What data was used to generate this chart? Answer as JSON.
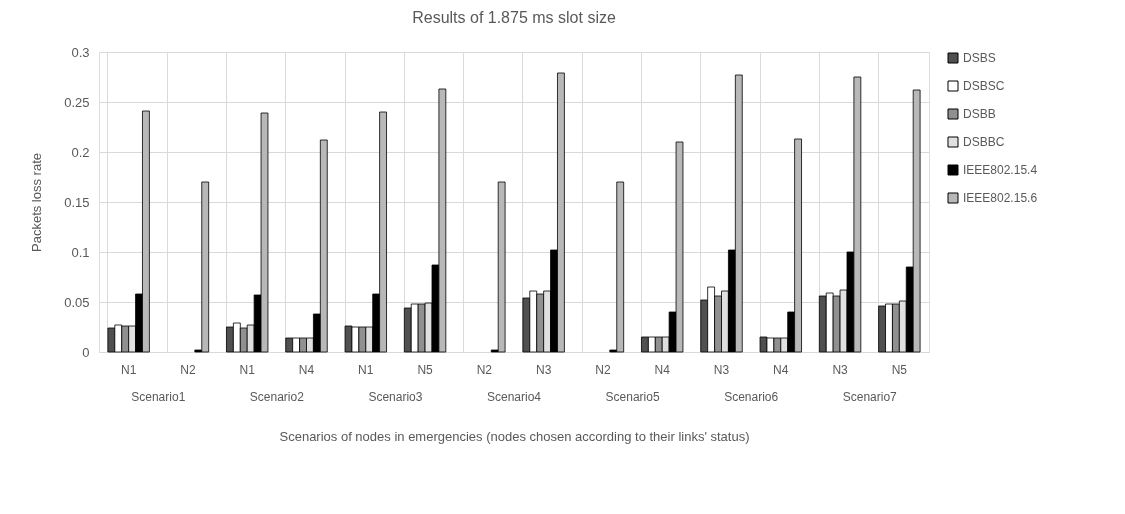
{
  "chart_data": {
    "type": "bar",
    "title": "Results of 1.875 ms slot size",
    "xlabel": "Scenarios of nodes in emergencies (nodes chosen according to their links' status)",
    "ylabel": "Packets loss rate",
    "categories": [
      "N1",
      "N2",
      "N1",
      "N4",
      "N1",
      "N5",
      "N2",
      "N3",
      "N2",
      "N4",
      "N3",
      "N4",
      "N3",
      "N5"
    ],
    "annotations": [
      "Scenario1",
      "Scenario2",
      "Scenario3",
      "Scenario4",
      "Scenario5",
      "Scenario6",
      "Scenario7"
    ],
    "series": [
      {
        "name": "DSBS",
        "color": "#505050",
        "values": [
          0.024,
          0,
          0.025,
          0.014,
          0.026,
          0.044,
          0,
          0.054,
          0,
          0.015,
          0.052,
          0.015,
          0.056,
          0.046
        ]
      },
      {
        "name": "DSBSC",
        "color": "#ffffff",
        "values": [
          0.027,
          0,
          0.029,
          0.014,
          0.025,
          0.048,
          0,
          0.061,
          0,
          0.015,
          0.065,
          0.014,
          0.059,
          0.048
        ]
      },
      {
        "name": "DSBB",
        "color": "#909090",
        "values": [
          0.026,
          0,
          0.024,
          0.014,
          0.025,
          0.048,
          0,
          0.058,
          0,
          0.015,
          0.056,
          0.014,
          0.056,
          0.048
        ]
      },
      {
        "name": "DSBBC",
        "color": "#e0e0e0",
        "values": [
          0.026,
          0,
          0.027,
          0.014,
          0.025,
          0.049,
          0,
          0.061,
          0,
          0.015,
          0.061,
          0.014,
          0.062,
          0.051
        ]
      },
      {
        "name": "IEEE802.15.4",
        "color": "#000000",
        "values": [
          0.058,
          0.002,
          0.057,
          0.038,
          0.058,
          0.087,
          0.002,
          0.102,
          0.002,
          0.04,
          0.102,
          0.04,
          0.1,
          0.085
        ]
      },
      {
        "name": "IEEE802.15.6",
        "color": "#b8b8b8",
        "values": [
          0.241,
          0.17,
          0.239,
          0.212,
          0.24,
          0.263,
          0.17,
          0.279,
          0.17,
          0.21,
          0.277,
          0.213,
          0.275,
          0.262
        ]
      }
    ],
    "ylim": [
      0,
      0.3
    ],
    "yticks": [
      0,
      0.05,
      0.1,
      0.15,
      0.2,
      0.25,
      0.3
    ],
    "grid": true,
    "legend": "right"
  }
}
